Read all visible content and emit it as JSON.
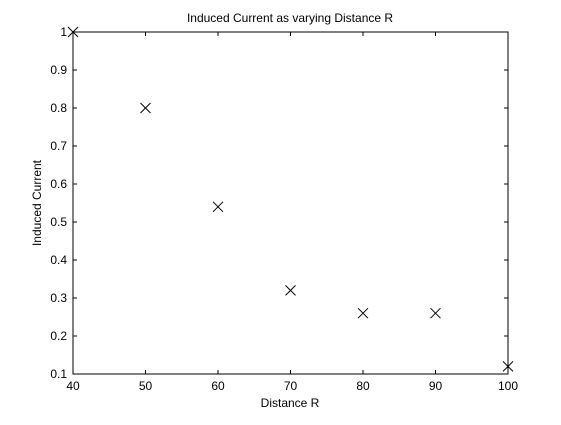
{
  "chart_data": {
    "type": "scatter",
    "title": "Induced Current as varying Distance R",
    "xlabel": "Distance R",
    "ylabel": "Induced Current",
    "marker": "x",
    "marker_color": "#000000",
    "xlim": [
      40,
      100
    ],
    "ylim": [
      0.1,
      1
    ],
    "xticks": [
      "40",
      "50",
      "60",
      "70",
      "80",
      "90",
      "100"
    ],
    "yticks": [
      "0.1",
      "0.2",
      "0.3",
      "0.4",
      "0.5",
      "0.6",
      "0.7",
      "0.8",
      "0.9",
      "1"
    ],
    "grid": false,
    "series": [
      {
        "x": [
          40,
          50,
          60,
          70,
          80,
          90,
          100
        ],
        "y": [
          1.0,
          0.8,
          0.54,
          0.32,
          0.26,
          0.26,
          0.12
        ]
      }
    ]
  }
}
